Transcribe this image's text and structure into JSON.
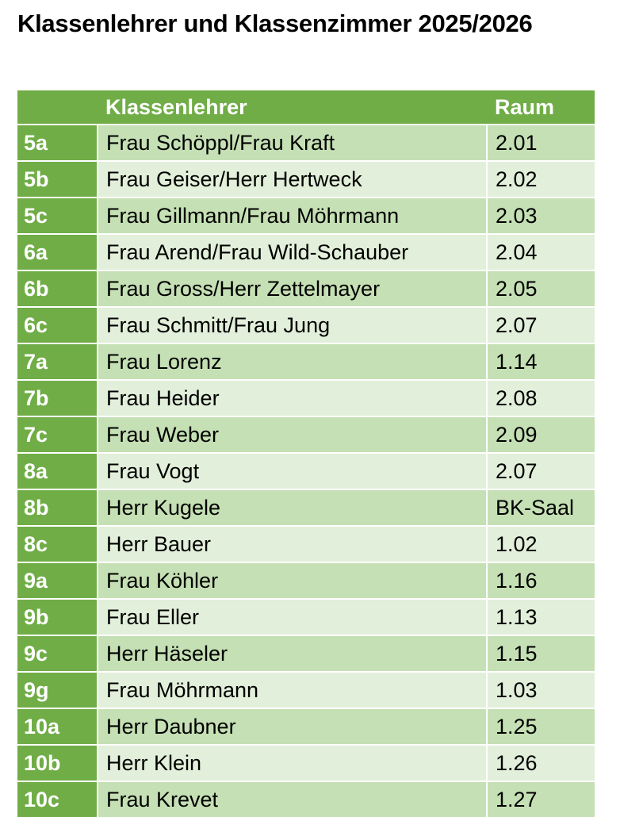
{
  "title": "Klassenlehrer und Klassenzimmer 2025/2026",
  "colors": {
    "header_green": "#70ad47",
    "row_dark": "#c5e0b4",
    "row_light": "#e2efda"
  },
  "table": {
    "headers": [
      "",
      "Klassenlehrer",
      "Raum"
    ],
    "rows": [
      {
        "klasse": "5a",
        "lehrer": "Frau Schöppl/Frau Kraft",
        "raum": "2.01"
      },
      {
        "klasse": "5b",
        "lehrer": "Frau Geiser/Herr Hertweck",
        "raum": "2.02"
      },
      {
        "klasse": "5c",
        "lehrer": "Frau Gillmann/Frau Möhrmann",
        "raum": "2.03"
      },
      {
        "klasse": "6a",
        "lehrer": "Frau Arend/Frau Wild-Schauber",
        "raum": "2.04"
      },
      {
        "klasse": "6b",
        "lehrer": "Frau Gross/Herr Zettelmayer",
        "raum": "2.05"
      },
      {
        "klasse": "6c",
        "lehrer": "Frau Schmitt/Frau Jung",
        "raum": "2.07"
      },
      {
        "klasse": "7a",
        "lehrer": "Frau Lorenz",
        "raum": "1.14"
      },
      {
        "klasse": "7b",
        "lehrer": "Frau Heider",
        "raum": "2.08"
      },
      {
        "klasse": "7c",
        "lehrer": "Frau Weber",
        "raum": "2.09"
      },
      {
        "klasse": "8a",
        "lehrer": "Frau Vogt",
        "raum": "2.07"
      },
      {
        "klasse": "8b",
        "lehrer": "Herr Kugele",
        "raum": "BK-Saal"
      },
      {
        "klasse": "8c",
        "lehrer": "Herr Bauer",
        "raum": "1.02"
      },
      {
        "klasse": "9a",
        "lehrer": "Frau Köhler",
        "raum": "1.16"
      },
      {
        "klasse": "9b",
        "lehrer": "Frau Eller",
        "raum": "1.13"
      },
      {
        "klasse": "9c",
        "lehrer": "Herr Häseler",
        "raum": "1.15"
      },
      {
        "klasse": "9g",
        "lehrer": "Frau Möhrmann",
        "raum": "1.03"
      },
      {
        "klasse": "10a",
        "lehrer": "Herr Daubner",
        "raum": "1.25"
      },
      {
        "klasse": "10b",
        "lehrer": "Herr Klein",
        "raum": "1.26"
      },
      {
        "klasse": "10c",
        "lehrer": "Frau Krevet",
        "raum": "1.27"
      }
    ]
  }
}
